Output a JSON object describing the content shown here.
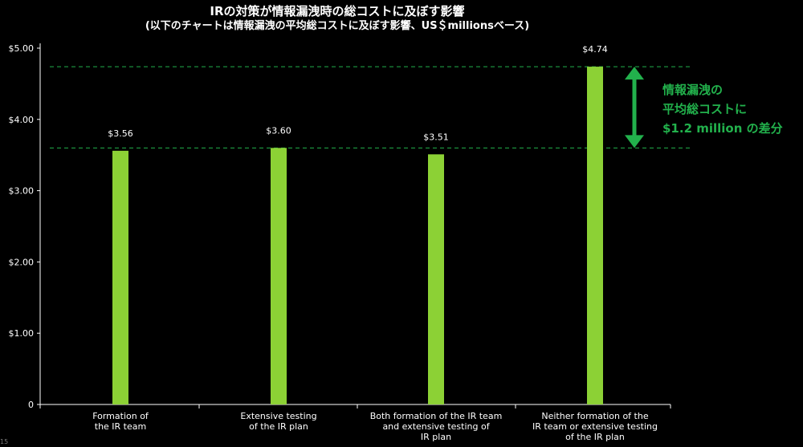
{
  "colors": {
    "bar": "#8cd135",
    "reference_line": "#22b14c",
    "arrow": "#22b14c",
    "annotation": "#22b14c",
    "text": "#ffffff",
    "background": "#000000"
  },
  "chart_data": {
    "type": "bar",
    "title": "IRの対策が情報漏洩時の総コストに及ぼす影響",
    "subtitle": "(以下のチャートは情報漏洩の平均総コストに及ぼす影響、US＄millionsベース)",
    "categories": [
      [
        "Formation of",
        "the IR team"
      ],
      [
        "Extensive testing",
        "of the IR plan"
      ],
      [
        "Both formation of the IR team",
        "and extensive testing of",
        "IR plan"
      ],
      [
        "Neither formation of the",
        "IR team or extensive testing",
        "of the IR plan"
      ]
    ],
    "values": [
      3.56,
      3.6,
      3.51,
      4.74
    ],
    "value_labels": [
      "$3.56",
      "$3.60",
      "$3.51",
      "$4.74"
    ],
    "ylim": [
      0,
      5
    ],
    "yticks": [
      0,
      1,
      2,
      3,
      4,
      5
    ],
    "ytick_labels": [
      "0",
      "$1.00",
      "$2.00",
      "$3.00",
      "$4.00",
      "$5.00"
    ],
    "reference_lines": [
      4.74,
      3.6
    ],
    "annotation": {
      "lines": [
        "情報漏洩の",
        "平均総コストに",
        "$1.2 million の差分"
      ],
      "arrow_from": 3.6,
      "arrow_to": 4.74
    },
    "corner_mark": "15",
    "grid": false,
    "legend": "none"
  }
}
